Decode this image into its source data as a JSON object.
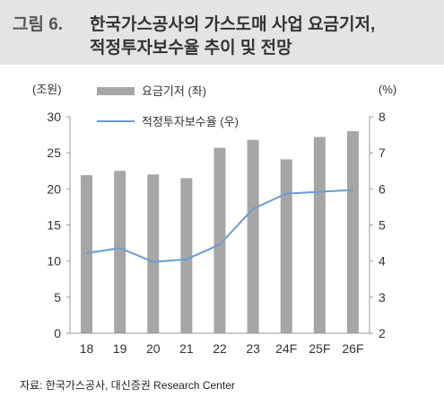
{
  "header": {
    "fig_label": "그림 6.",
    "title_line1": "한국가스공사의 가스도매 사업 요금기저,",
    "title_line2": "적정투자보수율 추이 및 전망"
  },
  "source": "자료: 한국가스공사, 대신증권 Research Center",
  "colors": {
    "bar": "#a6a6a6",
    "line": "#6a9bd4",
    "axis": "#999999",
    "band": "#e4e4e4"
  },
  "chart_data": {
    "type": "bar",
    "categories": [
      "18",
      "19",
      "20",
      "21",
      "22",
      "23",
      "24F",
      "25F",
      "26F"
    ],
    "y_left_unit": "(조원)",
    "y_right_unit": "(%)",
    "ylim_left": [
      0,
      30
    ],
    "ylim_right": [
      2,
      8
    ],
    "yticks_left": [
      "0",
      "5",
      "10",
      "15",
      "20",
      "25",
      "30"
    ],
    "yticks_right": [
      "2",
      "3",
      "4",
      "5",
      "6",
      "7",
      "8"
    ],
    "grid": false,
    "legend_position": "top-left",
    "series": [
      {
        "name": "요금기저 (좌)",
        "type": "bar",
        "axis": "left",
        "values": [
          21.9,
          22.5,
          22.0,
          21.5,
          25.7,
          26.8,
          24.1,
          27.2,
          28.0
        ]
      },
      {
        "name": "적정투자보수율 (우)",
        "type": "line",
        "axis": "right",
        "values": [
          4.22,
          4.36,
          3.98,
          4.05,
          4.46,
          5.45,
          5.87,
          5.92,
          5.97
        ]
      }
    ]
  }
}
